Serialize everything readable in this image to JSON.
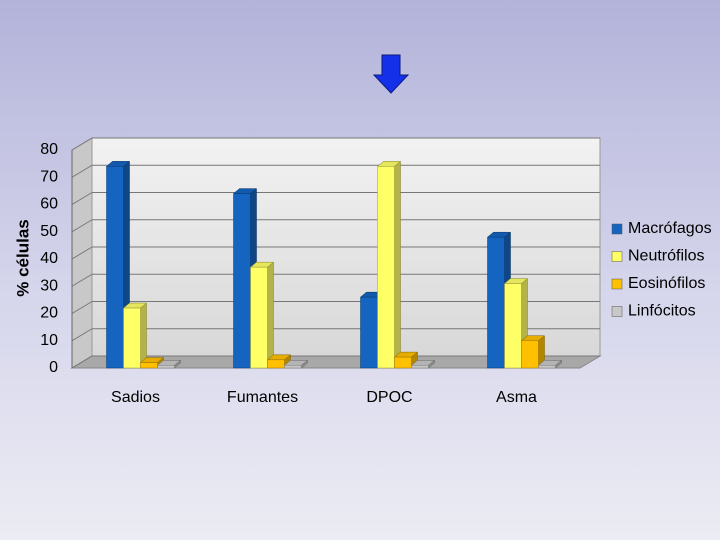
{
  "chart_data": {
    "type": "bar3d",
    "y_label": "% células",
    "categories": [
      "Sadios",
      "Fumantes",
      "DPOC",
      "Asma"
    ],
    "series": [
      {
        "name": "Macrófagos",
        "color": "#1464c0",
        "values": [
          74,
          64,
          26,
          48
        ]
      },
      {
        "name": "Neutrófilos",
        "color": "#ffff66",
        "values": [
          22,
          37,
          74,
          31
        ]
      },
      {
        "name": "Eosinófilos",
        "color": "#ffc000",
        "values": [
          2,
          3,
          4,
          10
        ]
      },
      {
        "name": "Linfócitos",
        "color": "#c8c8c8",
        "values": [
          1,
          1,
          1,
          1
        ]
      }
    ],
    "ylim": [
      0,
      80
    ],
    "yticks": [
      0,
      10,
      20,
      30,
      40,
      50,
      60,
      70,
      80
    ],
    "grid": true,
    "legend": "right"
  }
}
